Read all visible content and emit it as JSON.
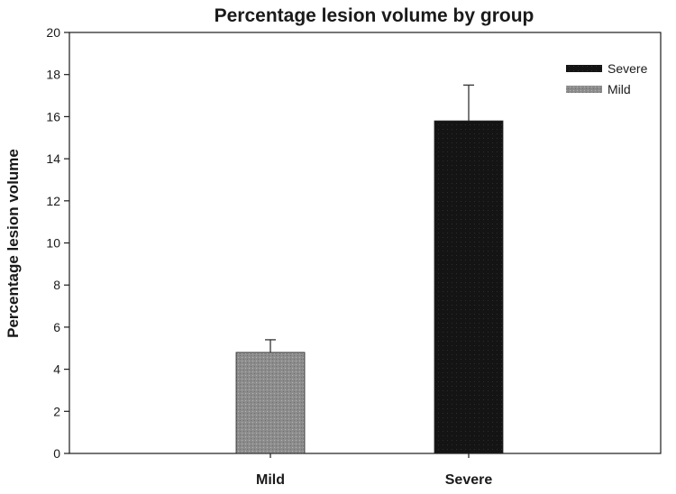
{
  "chart_data": {
    "type": "bar",
    "title": "Percentage lesion volume by group",
    "xlabel": "",
    "ylabel": "Percentage lesion volume",
    "categories": [
      "Mild",
      "Severe"
    ],
    "values": [
      4.8,
      15.8
    ],
    "error_upper": [
      5.4,
      17.5
    ],
    "ylim": [
      0,
      20
    ],
    "yticks": [
      "0",
      "2",
      "4",
      "6",
      "8",
      "10",
      "12",
      "14",
      "16",
      "18",
      "20"
    ],
    "legend": {
      "position": "top-right",
      "entries": [
        {
          "label": "Severe",
          "color": "#141414"
        },
        {
          "label": "Mild",
          "color": "#8a8a8a"
        }
      ]
    },
    "colors": [
      "#8a8a8a",
      "#141414"
    ],
    "grid": false
  }
}
